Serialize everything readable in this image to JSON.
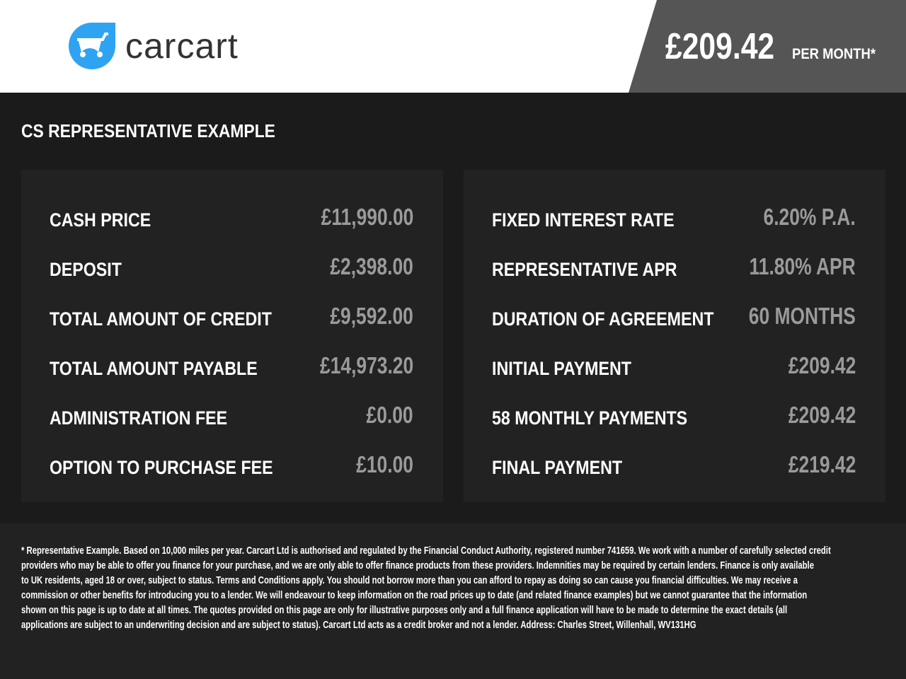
{
  "header": {
    "brand": "carcart",
    "brand_color": "#2ea3f2",
    "monthly_price": "£209.42",
    "per_month_label": "PER MONTH*"
  },
  "section_title": "CS REPRESENTATIVE EXAMPLE",
  "left_card": [
    {
      "label": "CASH PRICE",
      "value": "£11,990.00"
    },
    {
      "label": "DEPOSIT",
      "value": "£2,398.00"
    },
    {
      "label": "TOTAL AMOUNT OF CREDIT",
      "value": "£9,592.00"
    },
    {
      "label": "TOTAL AMOUNT PAYABLE",
      "value": "£14,973.20"
    },
    {
      "label": "ADMINISTRATION FEE",
      "value": "£0.00"
    },
    {
      "label": "OPTION TO PURCHASE FEE",
      "value": "£10.00"
    }
  ],
  "right_card": [
    {
      "label": "FIXED INTEREST RATE",
      "value": "6.20% P.A."
    },
    {
      "label": "REPRESENTATIVE APR",
      "value": "11.80% APR"
    },
    {
      "label": "DURATION OF AGREEMENT",
      "value": "60 MONTHS"
    },
    {
      "label": "INITIAL PAYMENT",
      "value": "£209.42"
    },
    {
      "label": "58 MONTHLY PAYMENTS",
      "value": "£209.42"
    },
    {
      "label": "FINAL PAYMENT",
      "value": "£219.42"
    }
  ],
  "footnote": [
    "* Representative Example. Based on 10,000 miles per year. Carcart Ltd is authorised and regulated by the Financial Conduct Authority, registered number 741659. We work with a number of carefully selected credit",
    "providers who may be able to offer you finance for your purchase, and we are only able to offer finance products from these providers. Indemnities may be required by certain lenders. Finance is only available",
    "to UK residents, aged 18 or over, subject to status. Terms and Conditions apply. You should not borrow more than you can afford to repay as doing so can cause you financial difficulties. We may receive a",
    "commission or other benefits for introducing you to a lender. We will endeavour to keep information on the road prices up to date (and related finance examples) but we cannot guarantee that the information",
    "shown on this page is up to date at all times. The quotes provided on this page are only for illustrative purposes only and a full finance application will have to be made to determine the exact details (all",
    "applications are subject to an underwriting decision and are subject to status). Carcart Ltd acts as a credit broker and not a lender. Address: Charles Street, Willenhall, WV131HG"
  ]
}
